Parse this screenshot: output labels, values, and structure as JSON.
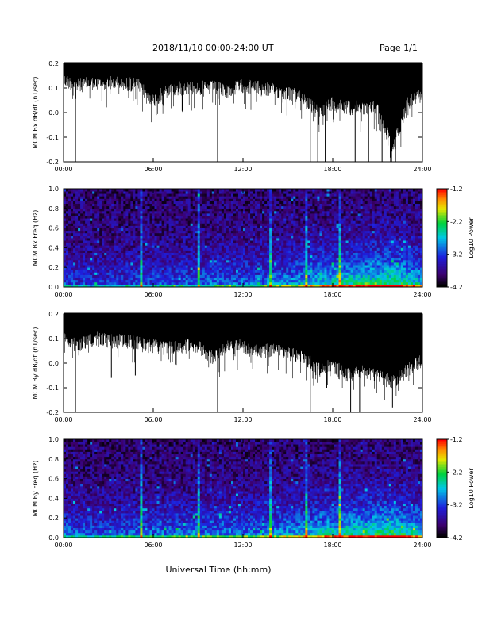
{
  "header": {
    "date_range": "2018/11/10   00:00-24:00 UT",
    "page": "Page 1/1"
  },
  "chart_data": [
    {
      "type": "line",
      "ylabel": "MCM Bx dB/dt (nT/sec)",
      "ylim": [
        -0.2,
        0.2
      ],
      "yticks": [
        "-0.2",
        "-0.1",
        "0.0",
        "0.1",
        "0.2"
      ],
      "xlim": [
        0,
        24
      ],
      "xticks": [
        "00:00",
        "06:00",
        "12:00",
        "18:00",
        "24:00"
      ],
      "color": "#000000",
      "envelope": {
        "hours": [
          0,
          1,
          2,
          3,
          4,
          5,
          6,
          7,
          8,
          9,
          10,
          11,
          12,
          13,
          14,
          15,
          16,
          17,
          18,
          19,
          20,
          21,
          22,
          23,
          24
        ],
        "lower": [
          0.16,
          0.14,
          0.15,
          0.15,
          0.15,
          0.14,
          0.08,
          0.12,
          0.13,
          0.13,
          0.13,
          0.12,
          0.14,
          0.13,
          0.12,
          0.11,
          0.09,
          0.03,
          0.07,
          0.05,
          0.05,
          0.05,
          -0.12,
          0.07,
          0.1
        ]
      },
      "spikes": [
        {
          "t": 0.8,
          "y": -0.2
        },
        {
          "t": 6.2,
          "y": -0.01
        },
        {
          "t": 10.3,
          "y": -0.2
        },
        {
          "t": 16.5,
          "y": -0.2
        },
        {
          "t": 17.0,
          "y": -0.2
        },
        {
          "t": 17.5,
          "y": -0.2
        },
        {
          "t": 19.5,
          "y": -0.2
        },
        {
          "t": 20.4,
          "y": -0.2
        },
        {
          "t": 21.3,
          "y": -0.2
        },
        {
          "t": 22.2,
          "y": -0.2
        }
      ]
    },
    {
      "type": "heatmap",
      "ylabel": "MCM Bx Freq (Hz)",
      "ylim": [
        0.0,
        1.0
      ],
      "yticks": [
        "0.0",
        "0.2",
        "0.4",
        "0.6",
        "0.8",
        "1.0"
      ],
      "xlim": [
        0,
        24
      ],
      "xticks": [
        "00:00",
        "06:00",
        "12:00",
        "18:00",
        "24:00"
      ],
      "colorbar": {
        "label": "Log10 Power",
        "range": [
          -4.2,
          -1.2
        ],
        "ticks": [
          "-1.2",
          "-2.2",
          "-3.2",
          "-4.2"
        ]
      },
      "activity": [
        0.35,
        0.3,
        0.3,
        0.3,
        0.32,
        0.34,
        0.35,
        0.35,
        0.38,
        0.38,
        0.42,
        0.4,
        0.4,
        0.42,
        0.45,
        0.5,
        0.55,
        0.6,
        0.65,
        0.7,
        0.72,
        0.75,
        0.8,
        0.7,
        0.6
      ],
      "bright_lines": [
        5.2,
        9.0,
        13.8,
        16.2,
        18.5
      ]
    },
    {
      "type": "line",
      "ylabel": "MCM By dB/dt (nT/sec)",
      "ylim": [
        -0.2,
        0.2
      ],
      "yticks": [
        "-0.2",
        "-0.1",
        "0.0",
        "0.1",
        "0.2"
      ],
      "xlim": [
        0,
        24
      ],
      "xticks": [
        "00:00",
        "06:00",
        "12:00",
        "18:00",
        "24:00"
      ],
      "color": "#000000",
      "envelope": {
        "hours": [
          0,
          1,
          2,
          3,
          4,
          5,
          6,
          7,
          8,
          9,
          10,
          11,
          12,
          13,
          14,
          15,
          16,
          17,
          18,
          19,
          20,
          21,
          22,
          23,
          24
        ],
        "lower": [
          0.13,
          0.1,
          0.13,
          0.12,
          0.12,
          0.11,
          0.1,
          0.09,
          0.1,
          0.1,
          0.05,
          0.1,
          0.1,
          0.08,
          0.08,
          0.07,
          0.06,
          0.0,
          0.02,
          -0.02,
          0.0,
          -0.02,
          -0.05,
          0.0,
          0.05
        ]
      },
      "spikes": [
        {
          "t": 0.8,
          "y": -0.2
        },
        {
          "t": 3.2,
          "y": -0.06
        },
        {
          "t": 4.8,
          "y": -0.05
        },
        {
          "t": 10.3,
          "y": -0.2
        },
        {
          "t": 16.5,
          "y": -0.2
        },
        {
          "t": 17.6,
          "y": -0.1
        },
        {
          "t": 19.2,
          "y": -0.2
        },
        {
          "t": 19.8,
          "y": -0.2
        },
        {
          "t": 22.0,
          "y": -0.18
        }
      ]
    },
    {
      "type": "heatmap",
      "ylabel": "MCM By Freq (Hz)",
      "ylim": [
        0.0,
        1.0
      ],
      "yticks": [
        "0.0",
        "0.2",
        "0.4",
        "0.6",
        "0.8",
        "1.0"
      ],
      "xlim": [
        0,
        24
      ],
      "xticks": [
        "00:00",
        "06:00",
        "12:00",
        "18:00",
        "24:00"
      ],
      "colorbar": {
        "label": "Log10 Power",
        "range": [
          -4.2,
          -1.2
        ],
        "ticks": [
          "-1.2",
          "-2.2",
          "-3.2",
          "-4.2"
        ]
      },
      "activity": [
        0.4,
        0.38,
        0.36,
        0.36,
        0.38,
        0.4,
        0.4,
        0.42,
        0.42,
        0.42,
        0.45,
        0.45,
        0.45,
        0.46,
        0.48,
        0.52,
        0.56,
        0.6,
        0.65,
        0.7,
        0.72,
        0.74,
        0.78,
        0.7,
        0.62
      ],
      "bright_lines": [
        5.2,
        9.0,
        13.8,
        16.2,
        18.5
      ]
    }
  ],
  "xlabel": "Universal Time (hh:mm)"
}
